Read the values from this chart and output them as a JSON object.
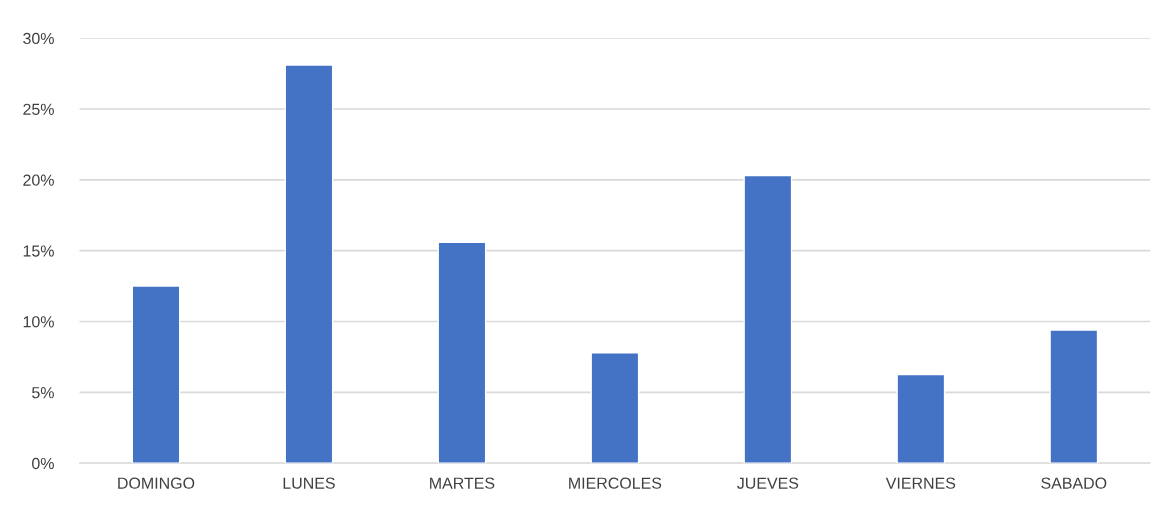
{
  "chart_data": {
    "type": "bar",
    "categories": [
      "DOMINGO",
      "LUNES",
      "MARTES",
      "MIERCOLES",
      "JUEVES",
      "VIERNES",
      "SABADO"
    ],
    "values": [
      12.5,
      28.1,
      15.6,
      7.8,
      20.3,
      6.25,
      9.4
    ],
    "color": "#4472c4",
    "ylim": [
      0,
      30
    ],
    "yticks": [
      {
        "value": 0,
        "label": "0%"
      },
      {
        "value": 5,
        "label": "5%"
      },
      {
        "value": 10,
        "label": "10%"
      },
      {
        "value": 15,
        "label": "15%"
      },
      {
        "value": 20,
        "label": "20%"
      },
      {
        "value": 25,
        "label": "25%"
      },
      {
        "value": 30,
        "label": "30%"
      }
    ],
    "grid": "y"
  }
}
